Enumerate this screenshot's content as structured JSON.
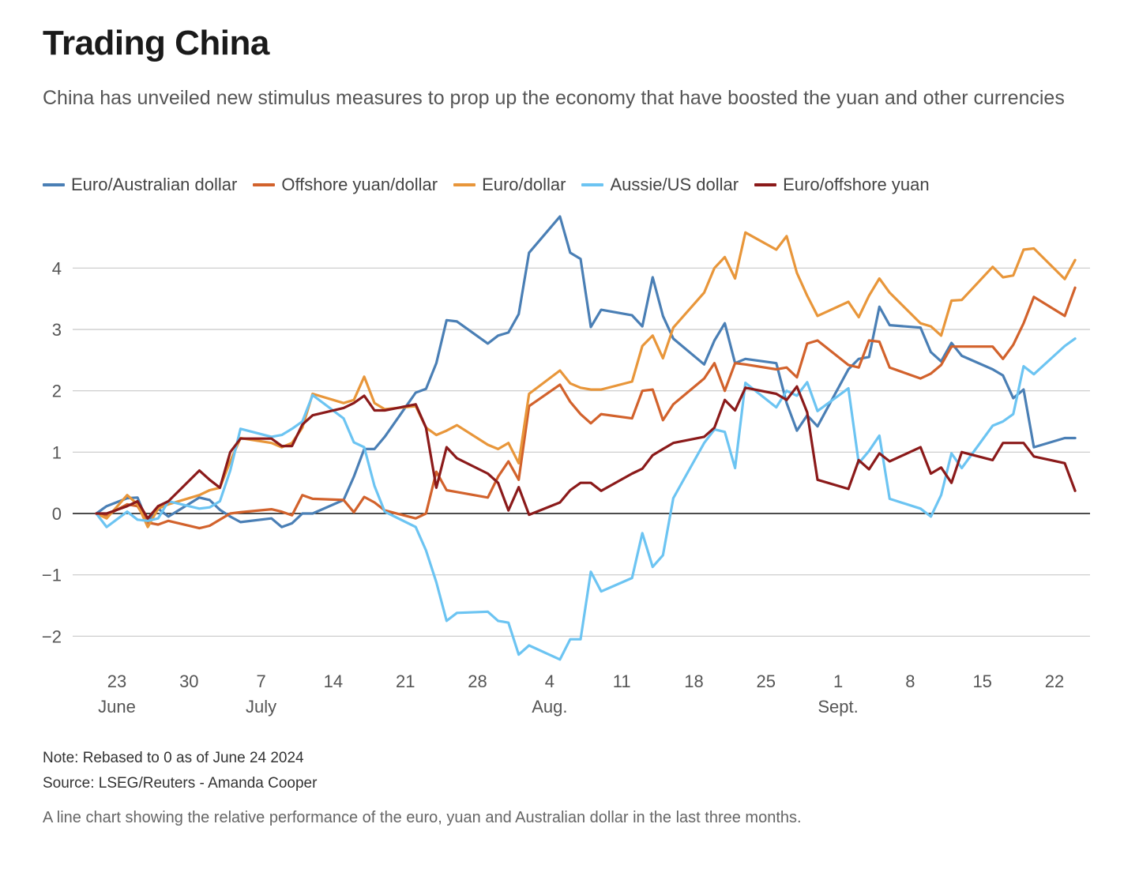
{
  "header": {
    "title": "Trading China",
    "subtitle": "China has unveiled new stimulus measures to prop up the economy that have boosted the yuan and other currencies"
  },
  "footer": {
    "note": "Note: Rebased to 0 as of June 24 2024",
    "source": "Source: LSEG/Reuters - Amanda Cooper",
    "caption": "A line chart showing the relative performance of the euro, yuan and Australian dollar in the last three months."
  },
  "chart_data": {
    "type": "line",
    "title": "Trading China",
    "xlabel": "",
    "ylabel": "",
    "ylim": [
      -2.4,
      4.9
    ],
    "grid": true,
    "legend_position": "top",
    "y_ticks": [
      {
        "value": 4,
        "label": "4"
      },
      {
        "value": 3,
        "label": "3"
      },
      {
        "value": 2,
        "label": "2"
      },
      {
        "value": 1,
        "label": "1"
      },
      {
        "value": 0,
        "label": "0"
      },
      {
        "value": -1,
        "label": "−1"
      },
      {
        "value": -2,
        "label": "−2"
      }
    ],
    "x_ticks": [
      {
        "date": "2024-06-23",
        "day": "23",
        "month": "June"
      },
      {
        "date": "2024-06-30",
        "day": "30",
        "month": ""
      },
      {
        "date": "2024-07-07",
        "day": "7",
        "month": "July"
      },
      {
        "date": "2024-07-14",
        "day": "14",
        "month": ""
      },
      {
        "date": "2024-07-21",
        "day": "21",
        "month": ""
      },
      {
        "date": "2024-07-28",
        "day": "28",
        "month": ""
      },
      {
        "date": "2024-08-04",
        "day": "4",
        "month": "Aug."
      },
      {
        "date": "2024-08-11",
        "day": "11",
        "month": ""
      },
      {
        "date": "2024-08-18",
        "day": "18",
        "month": ""
      },
      {
        "date": "2024-08-25",
        "day": "25",
        "month": ""
      },
      {
        "date": "2024-09-01",
        "day": "1",
        "month": "Sept."
      },
      {
        "date": "2024-09-08",
        "day": "8",
        "month": ""
      },
      {
        "date": "2024-09-15",
        "day": "15",
        "month": ""
      },
      {
        "date": "2024-09-22",
        "day": "22",
        "month": ""
      }
    ],
    "x": [
      "2024-06-21",
      "2024-06-22",
      "2024-06-24",
      "2024-06-25",
      "2024-06-26",
      "2024-06-27",
      "2024-06-28",
      "2024-07-01",
      "2024-07-02",
      "2024-07-03",
      "2024-07-04",
      "2024-07-05",
      "2024-07-08",
      "2024-07-09",
      "2024-07-10",
      "2024-07-11",
      "2024-07-12",
      "2024-07-15",
      "2024-07-16",
      "2024-07-17",
      "2024-07-18",
      "2024-07-19",
      "2024-07-22",
      "2024-07-23",
      "2024-07-24",
      "2024-07-25",
      "2024-07-26",
      "2024-07-29",
      "2024-07-30",
      "2024-07-31",
      "2024-08-01",
      "2024-08-02",
      "2024-08-05",
      "2024-08-06",
      "2024-08-07",
      "2024-08-08",
      "2024-08-09",
      "2024-08-12",
      "2024-08-13",
      "2024-08-14",
      "2024-08-15",
      "2024-08-16",
      "2024-08-19",
      "2024-08-20",
      "2024-08-21",
      "2024-08-22",
      "2024-08-23",
      "2024-08-26",
      "2024-08-27",
      "2024-08-28",
      "2024-08-29",
      "2024-08-30",
      "2024-09-02",
      "2024-09-03",
      "2024-09-04",
      "2024-09-05",
      "2024-09-06",
      "2024-09-09",
      "2024-09-10",
      "2024-09-11",
      "2024-09-12",
      "2024-09-13",
      "2024-09-16",
      "2024-09-17",
      "2024-09-18",
      "2024-09-19",
      "2024-09-20",
      "2024-09-23",
      "2024-09-24"
    ],
    "series": [
      {
        "name": "Euro/Australian dollar",
        "color": "#4a7fb5",
        "values": [
          0.0,
          0.12,
          0.25,
          0.26,
          -0.15,
          0.08,
          -0.05,
          0.26,
          0.22,
          0.06,
          -0.05,
          -0.14,
          -0.08,
          -0.22,
          -0.16,
          0.0,
          0.0,
          0.22,
          0.6,
          1.05,
          1.05,
          1.25,
          1.97,
          2.03,
          2.45,
          3.15,
          3.13,
          2.77,
          2.9,
          2.95,
          3.25,
          4.25,
          4.84,
          4.25,
          4.15,
          3.04,
          3.32,
          3.23,
          3.05,
          3.85,
          3.22,
          2.85,
          2.43,
          2.82,
          3.1,
          2.45,
          2.52,
          2.45,
          1.8,
          1.35,
          1.6,
          1.42,
          2.35,
          2.52,
          2.55,
          3.37,
          3.07,
          3.03,
          2.63,
          2.48,
          2.78,
          2.57,
          2.35,
          2.25,
          1.88,
          2.02,
          1.08,
          1.23,
          1.23
        ]
      },
      {
        "name": "Offshore yuan/dollar",
        "color": "#d2622c",
        "values": [
          0.0,
          -0.03,
          0.15,
          0.12,
          -0.15,
          -0.18,
          -0.12,
          -0.24,
          -0.2,
          -0.1,
          0.0,
          0.02,
          0.07,
          0.03,
          -0.03,
          0.3,
          0.24,
          0.22,
          0.02,
          0.27,
          0.18,
          0.05,
          -0.08,
          0.0,
          0.68,
          0.38,
          0.35,
          0.26,
          0.6,
          0.85,
          0.55,
          1.75,
          2.1,
          1.82,
          1.62,
          1.47,
          1.62,
          1.55,
          2.0,
          2.02,
          1.52,
          1.78,
          2.2,
          2.45,
          2.0,
          2.45,
          2.43,
          2.35,
          2.38,
          2.22,
          2.77,
          2.82,
          2.42,
          2.38,
          2.82,
          2.8,
          2.38,
          2.2,
          2.28,
          2.42,
          2.72,
          2.72,
          2.72,
          2.52,
          2.75,
          3.1,
          3.53,
          3.22,
          3.68
        ]
      },
      {
        "name": "Euro/dollar",
        "color": "#e8963a",
        "values": [
          0.0,
          -0.08,
          0.3,
          0.15,
          -0.22,
          0.08,
          0.15,
          0.3,
          0.38,
          0.42,
          0.85,
          1.23,
          1.15,
          1.08,
          1.15,
          1.4,
          1.95,
          1.8,
          1.85,
          2.23,
          1.8,
          1.7,
          1.75,
          1.4,
          1.28,
          1.35,
          1.44,
          1.12,
          1.05,
          1.15,
          0.82,
          1.95,
          2.33,
          2.12,
          2.05,
          2.02,
          2.02,
          2.15,
          2.73,
          2.9,
          2.53,
          3.03,
          3.6,
          4.0,
          4.18,
          3.83,
          4.58,
          4.3,
          4.52,
          3.92,
          3.55,
          3.22,
          3.45,
          3.2,
          3.55,
          3.83,
          3.6,
          3.1,
          3.05,
          2.9,
          3.47,
          3.48,
          4.02,
          3.85,
          3.88,
          4.3,
          4.32,
          3.82,
          4.13
        ]
      },
      {
        "name": "Aussie/US dollar",
        "color": "#6cc4f2",
        "values": [
          0.0,
          -0.22,
          0.03,
          -0.1,
          -0.12,
          -0.08,
          0.2,
          0.08,
          0.1,
          0.2,
          0.7,
          1.38,
          1.25,
          1.28,
          1.38,
          1.5,
          1.93,
          1.55,
          1.16,
          1.08,
          0.45,
          0.03,
          -0.22,
          -0.6,
          -1.12,
          -1.75,
          -1.62,
          -1.6,
          -1.75,
          -1.78,
          -2.3,
          -2.15,
          -2.38,
          -2.05,
          -2.05,
          -0.95,
          -1.27,
          -1.05,
          -0.32,
          -0.87,
          -0.68,
          0.25,
          1.15,
          1.37,
          1.33,
          0.74,
          2.13,
          1.73,
          2.0,
          1.92,
          2.14,
          1.67,
          2.04,
          0.82,
          1.02,
          1.27,
          0.24,
          0.08,
          -0.05,
          0.3,
          0.98,
          0.74,
          1.43,
          1.5,
          1.62,
          2.4,
          2.27,
          2.73,
          2.85
        ]
      },
      {
        "name": "Euro/offshore yuan",
        "color": "#8b1a1a",
        "values": [
          0.0,
          0.0,
          0.12,
          0.2,
          -0.08,
          0.12,
          0.2,
          0.7,
          0.55,
          0.42,
          1.0,
          1.22,
          1.22,
          1.1,
          1.1,
          1.45,
          1.6,
          1.72,
          1.8,
          1.92,
          1.68,
          1.68,
          1.78,
          1.4,
          0.42,
          1.08,
          0.9,
          0.65,
          0.5,
          0.05,
          0.43,
          -0.02,
          0.18,
          0.38,
          0.5,
          0.5,
          0.37,
          0.65,
          0.73,
          0.95,
          1.05,
          1.15,
          1.25,
          1.4,
          1.85,
          1.68,
          2.05,
          1.95,
          1.85,
          2.07,
          1.65,
          0.55,
          0.4,
          0.87,
          0.72,
          0.98,
          0.85,
          1.08,
          0.65,
          0.75,
          0.5,
          1.0,
          0.87,
          1.15,
          1.15,
          1.15,
          0.93,
          0.82,
          0.37
        ]
      }
    ]
  }
}
